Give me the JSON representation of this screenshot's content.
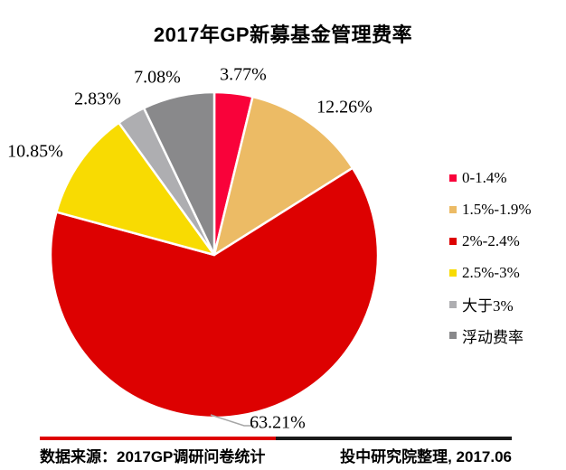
{
  "title": "2017年GP新募基金管理费率",
  "chart_data": {
    "type": "pie",
    "title": "2017年GP新募基金管理费率",
    "unit": "%",
    "start_angle_deg": 0,
    "direction": "clockwise",
    "legend_position": "right",
    "leader_color": "#A6A6A6",
    "slices": [
      {
        "label": "0-1.4%",
        "value": 3.77,
        "display": "3.77%",
        "color": "#F9023A"
      },
      {
        "label": "1.5%-1.9%",
        "value": 12.26,
        "display": "12.26%",
        "color": "#ECBB65"
      },
      {
        "label": "2%-2.4%",
        "value": 63.21,
        "display": "63.21%",
        "color": "#DD0101"
      },
      {
        "label": "2.5%-3%",
        "value": 10.85,
        "display": "10.85%",
        "color": "#F8DB02"
      },
      {
        "label": "大于3%",
        "value": 2.83,
        "display": "2.83%",
        "color": "#AEAEB1"
      },
      {
        "label": "浮动费率",
        "value": 7.08,
        "display": "7.08%",
        "color": "#89898B"
      }
    ]
  },
  "footer": {
    "source": "数据来源：2017GP调研问卷统计",
    "credit": "投中研究院整理, 2017.06",
    "bar_colors": [
      "#DE0000",
      "#1A1A1A"
    ]
  }
}
